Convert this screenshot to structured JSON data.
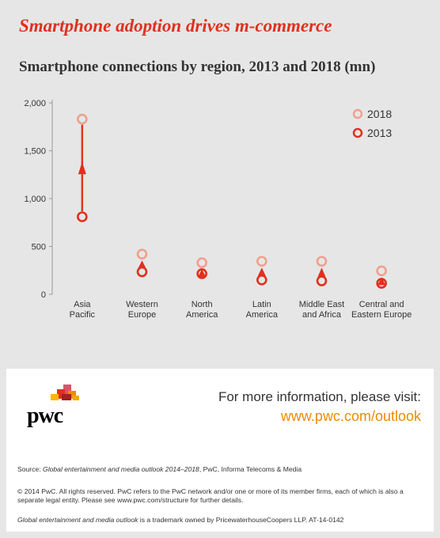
{
  "headline": "Smartphone adoption drives m-commerce",
  "chart_data": {
    "type": "dot-range",
    "title": "Smartphone connections by region, 2013 and 2018 (mn)",
    "categories": [
      "Asia\nPacific",
      "Western\nEurope",
      "North\nAmerica",
      "Latin\nAmerica",
      "Middle East\nand Africa",
      "Central and\nEastern Europe"
    ],
    "series": [
      {
        "name": "2018",
        "color": "#f0a08f",
        "values": [
          1830,
          420,
          330,
          345,
          345,
          245
        ]
      },
      {
        "name": "2013",
        "color": "#e0301e",
        "values": [
          810,
          235,
          215,
          150,
          140,
          115
        ]
      }
    ],
    "ylim": [
      0,
      2000
    ],
    "yticks": [
      0,
      500,
      1000,
      1500,
      2000
    ],
    "ytick_labels": [
      "0",
      "500",
      "1,000",
      "1,500",
      "2,000"
    ],
    "legend_position": "top-right",
    "arrow_color": "#e0301e"
  },
  "footer": {
    "logo_text": "pwc",
    "info_text": "For more information, please visit:",
    "info_link": "www.pwc.com/outlook",
    "source_prefix": "Source: ",
    "source_title": "Global entertainment and media outlook 2014–2018",
    "source_rest": ", PwC, Informa Telecoms & Media",
    "copyright": "© 2014 PwC. All rights reserved. PwC refers to the PwC network and/or one or more of its member firms, each of which is also a separate legal entity. Please see www.pwc.com/structure for further details.",
    "trademark_title": "Global entertainment and media outlook",
    "trademark_rest": " is a trademark owned by PricewaterhouseCoopers LLP. AT-14-0142"
  }
}
